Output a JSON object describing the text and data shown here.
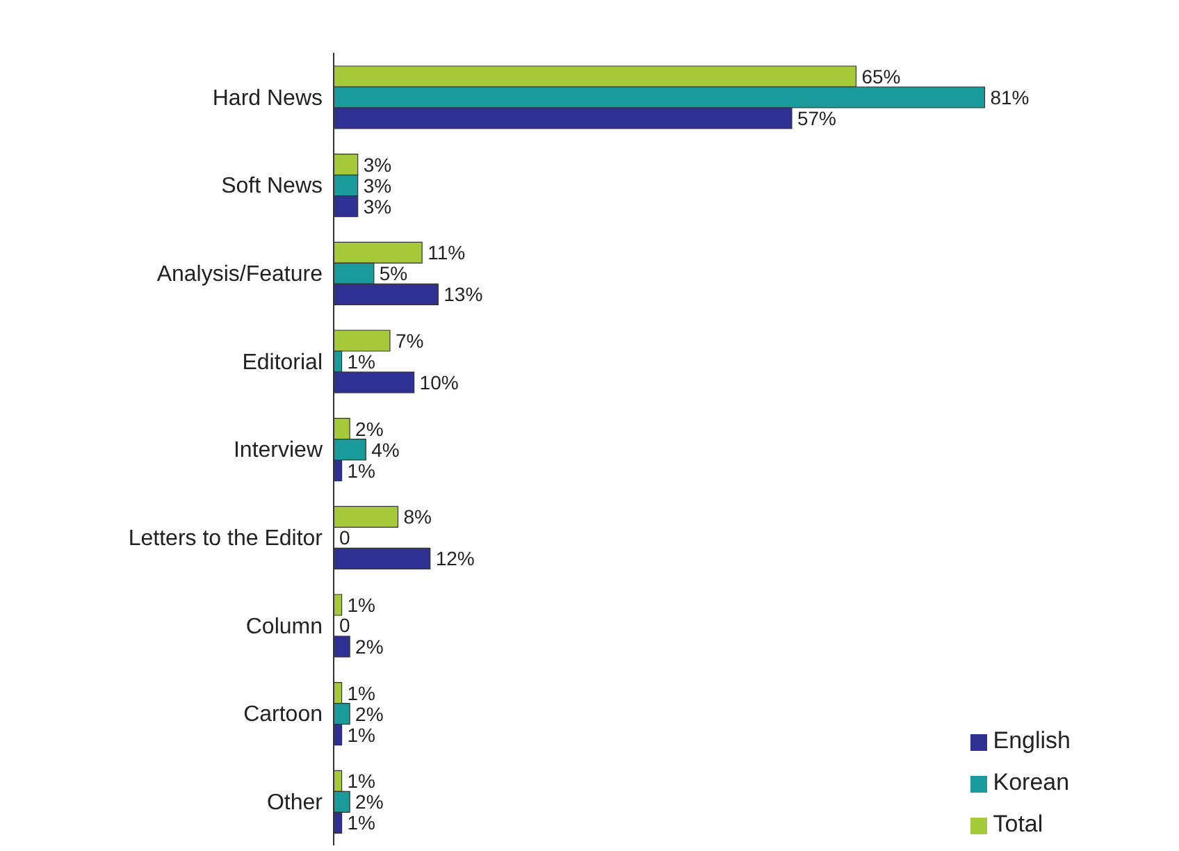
{
  "chart_data": {
    "type": "bar",
    "orientation": "horizontal",
    "categories": [
      "Hard News",
      "Soft News",
      "Analysis/Feature",
      "Editorial",
      "Interview",
      "Letters to the Editor",
      "Column",
      "Cartoon",
      "Other"
    ],
    "series": [
      {
        "name": "Total",
        "color": "#a6c93a",
        "values": [
          65,
          3,
          11,
          7,
          2,
          8,
          1,
          1,
          1
        ],
        "value_labels": [
          "65%",
          "3%",
          "11%",
          "7%",
          "2%",
          "8%",
          "1%",
          "1%",
          "1%"
        ]
      },
      {
        "name": "Korean",
        "color": "#1a9a9a",
        "values": [
          81,
          3,
          5,
          1,
          4,
          0,
          0,
          2,
          2
        ],
        "value_labels": [
          "81%",
          "3%",
          "5%",
          "1%",
          "4%",
          "0",
          "0",
          "2%",
          "2%"
        ]
      },
      {
        "name": "English",
        "color": "#2e3192",
        "values": [
          57,
          3,
          13,
          10,
          1,
          12,
          2,
          1,
          1
        ],
        "value_labels": [
          "57%",
          "3%",
          "13%",
          "10%",
          "1%",
          "12%",
          "2%",
          "1%",
          "1%"
        ]
      }
    ],
    "legend": "bottom right",
    "grid": false
  }
}
